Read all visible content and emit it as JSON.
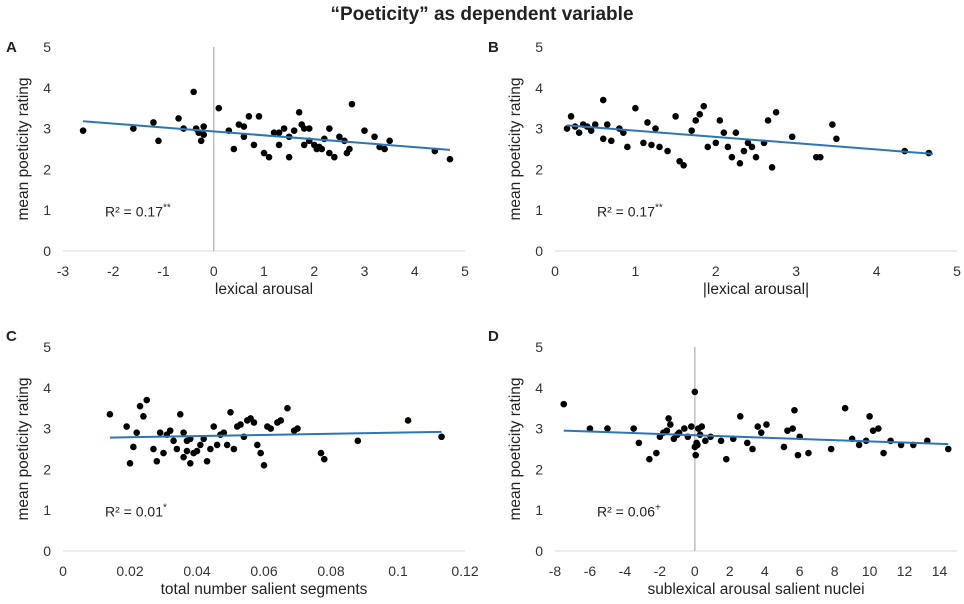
{
  "title": "“Poeticity” as dependent variable",
  "colors": {
    "trendline": "#2E75B6",
    "points": "#000000",
    "zero_line": "#BFBFBF",
    "axis": "#D9D9D9"
  },
  "chart_data": [
    {
      "panel_label": "A",
      "type": "scatter",
      "xlabel": "lexical arousal",
      "ylabel": "mean poeticity rating",
      "xlim": [
        -3,
        5
      ],
      "ylim": [
        0,
        5
      ],
      "x_ticks": [
        -3,
        -2,
        -1,
        0,
        1,
        2,
        3,
        4,
        5
      ],
      "y_ticks": [
        0,
        1,
        2,
        3,
        4,
        5
      ],
      "zero_line": true,
      "r2_text": "R² = 0.17",
      "r2_sig": "**",
      "trend": {
        "x": [
          -2.6,
          4.7
        ],
        "y": [
          3.18,
          2.48
        ]
      },
      "points": {
        "x": [
          -2.6,
          -1.6,
          -1.2,
          -1.1,
          -0.7,
          -0.6,
          -0.4,
          -0.35,
          -0.3,
          -0.25,
          -0.2,
          -0.2,
          0.1,
          0.3,
          0.4,
          0.5,
          0.6,
          0.6,
          0.7,
          0.8,
          0.9,
          1.0,
          1.1,
          1.2,
          1.3,
          1.3,
          1.4,
          1.5,
          1.5,
          1.6,
          1.7,
          1.75,
          1.8,
          1.8,
          1.9,
          1.9,
          2.0,
          2.05,
          2.1,
          2.15,
          2.2,
          2.3,
          2.3,
          2.4,
          2.5,
          2.6,
          2.65,
          2.7,
          2.75,
          3.0,
          3.2,
          3.3,
          3.4,
          3.5,
          4.4,
          4.7
        ],
        "y": [
          2.95,
          3.0,
          3.15,
          2.7,
          3.25,
          3.0,
          3.9,
          3.0,
          2.9,
          2.7,
          3.05,
          2.85,
          3.5,
          2.95,
          2.5,
          3.1,
          2.8,
          3.05,
          3.3,
          2.6,
          3.3,
          2.4,
          2.3,
          2.9,
          2.6,
          2.9,
          3.0,
          2.3,
          2.8,
          2.95,
          3.4,
          3.1,
          2.6,
          3.0,
          2.7,
          3.0,
          2.6,
          2.5,
          2.55,
          2.5,
          2.75,
          2.4,
          3.0,
          2.3,
          2.8,
          2.7,
          2.4,
          2.5,
          3.6,
          2.95,
          2.8,
          2.55,
          2.5,
          2.7,
          2.45,
          2.25
        ]
      }
    },
    {
      "panel_label": "B",
      "type": "scatter",
      "xlabel": "|lexical arousal|",
      "ylabel": "mean poeticity rating",
      "xlim": [
        0,
        5
      ],
      "ylim": [
        0,
        5
      ],
      "x_ticks": [
        0,
        1,
        2,
        3,
        4,
        5
      ],
      "y_ticks": [
        0,
        1,
        2,
        3,
        4,
        5
      ],
      "zero_line": false,
      "r2_text": "R² = 0.17",
      "r2_sig": "**",
      "trend": {
        "x": [
          0.15,
          4.7
        ],
        "y": [
          3.08,
          2.38
        ]
      },
      "points": {
        "x": [
          0.15,
          0.2,
          0.25,
          0.3,
          0.35,
          0.4,
          0.45,
          0.5,
          0.6,
          0.6,
          0.65,
          0.7,
          0.8,
          0.85,
          0.9,
          1.0,
          1.1,
          1.15,
          1.2,
          1.25,
          1.3,
          1.4,
          1.5,
          1.55,
          1.6,
          1.7,
          1.75,
          1.8,
          1.85,
          1.9,
          2.0,
          2.05,
          2.1,
          2.15,
          2.2,
          2.25,
          2.3,
          2.35,
          2.4,
          2.45,
          2.5,
          2.6,
          2.65,
          2.7,
          2.75,
          2.95,
          3.25,
          3.3,
          3.45,
          3.5,
          4.35,
          4.65
        ],
        "y": [
          3.0,
          3.3,
          3.05,
          2.9,
          3.1,
          3.05,
          2.95,
          3.1,
          3.7,
          2.75,
          3.1,
          2.7,
          3.0,
          2.9,
          2.55,
          3.5,
          2.65,
          3.15,
          2.6,
          3.0,
          2.55,
          2.45,
          3.3,
          2.2,
          2.1,
          2.95,
          3.2,
          3.35,
          3.55,
          2.55,
          2.65,
          3.2,
          2.9,
          2.55,
          2.3,
          2.9,
          2.15,
          2.45,
          2.65,
          2.55,
          2.3,
          2.65,
          3.2,
          2.05,
          3.4,
          2.8,
          2.3,
          2.3,
          3.1,
          2.75,
          2.45,
          2.4
        ]
      }
    },
    {
      "panel_label": "C",
      "type": "scatter",
      "xlabel": "total number salient segments",
      "ylabel": "mean poeticity rating",
      "xlim": [
        0,
        0.12
      ],
      "ylim": [
        0,
        5
      ],
      "x_ticks": [
        0,
        0.02,
        0.04,
        0.06,
        0.08,
        0.1,
        0.12
      ],
      "y_ticks": [
        0,
        1,
        2,
        3,
        4,
        5
      ],
      "zero_line": false,
      "r2_text": "R² = 0.01",
      "r2_sig": "*",
      "trend": {
        "x": [
          0.014,
          0.113
        ],
        "y": [
          2.78,
          2.92
        ]
      },
      "points": {
        "x": [
          0.014,
          0.019,
          0.02,
          0.021,
          0.022,
          0.023,
          0.024,
          0.025,
          0.027,
          0.028,
          0.029,
          0.03,
          0.031,
          0.032,
          0.033,
          0.034,
          0.035,
          0.036,
          0.036,
          0.037,
          0.037,
          0.038,
          0.038,
          0.039,
          0.04,
          0.041,
          0.042,
          0.043,
          0.044,
          0.045,
          0.046,
          0.047,
          0.048,
          0.049,
          0.05,
          0.051,
          0.052,
          0.053,
          0.054,
          0.055,
          0.056,
          0.057,
          0.058,
          0.059,
          0.06,
          0.061,
          0.062,
          0.064,
          0.065,
          0.067,
          0.069,
          0.07,
          0.077,
          0.078,
          0.088,
          0.103,
          0.113
        ],
        "y": [
          3.35,
          3.05,
          2.15,
          2.55,
          2.9,
          3.55,
          3.3,
          3.7,
          2.5,
          2.2,
          2.9,
          2.4,
          2.85,
          2.95,
          2.7,
          2.5,
          3.35,
          2.3,
          2.9,
          2.7,
          2.45,
          2.75,
          2.15,
          2.4,
          2.45,
          2.6,
          2.75,
          2.2,
          2.5,
          3.05,
          2.6,
          2.85,
          2.9,
          2.6,
          3.4,
          2.5,
          3.05,
          3.1,
          2.8,
          3.2,
          3.25,
          3.15,
          2.6,
          2.4,
          2.1,
          3.05,
          3.0,
          3.15,
          3.2,
          3.5,
          2.95,
          3.0,
          2.4,
          2.25,
          2.7,
          3.2,
          2.8
        ]
      }
    },
    {
      "panel_label": "D",
      "type": "scatter",
      "xlabel": "sublexical arousal salient nuclei",
      "ylabel": "mean poeticity rating",
      "xlim": [
        -8,
        15
      ],
      "ylim": [
        0,
        5
      ],
      "x_ticks": [
        -8,
        -6,
        -4,
        -2,
        0,
        2,
        4,
        6,
        8,
        10,
        12,
        14
      ],
      "y_ticks": [
        0,
        1,
        2,
        3,
        4,
        5
      ],
      "zero_line": true,
      "r2_text": "R² = 0.06",
      "r2_sig": "+",
      "trend": {
        "x": [
          -7.5,
          14.5
        ],
        "y": [
          2.95,
          2.62
        ]
      },
      "points": {
        "x": [
          -7.5,
          -6.0,
          -5.0,
          -3.5,
          -3.2,
          -2.6,
          -2.2,
          -2.0,
          -1.8,
          -1.6,
          -1.5,
          -1.4,
          -1.2,
          -1.0,
          -0.9,
          -0.6,
          -0.4,
          -0.2,
          0.0,
          0.0,
          0.05,
          0.1,
          0.15,
          0.2,
          0.3,
          0.4,
          0.6,
          0.9,
          1.5,
          1.8,
          2.2,
          2.6,
          3.0,
          3.3,
          3.6,
          3.8,
          4.1,
          5.1,
          5.3,
          5.6,
          5.7,
          5.9,
          6.0,
          6.5,
          7.8,
          8.6,
          9.0,
          9.4,
          9.8,
          10.0,
          10.2,
          10.5,
          10.8,
          11.2,
          11.8,
          12.5,
          13.3,
          14.5
        ],
        "y": [
          3.6,
          3.0,
          3.0,
          3.0,
          2.65,
          2.25,
          2.4,
          2.8,
          2.9,
          2.95,
          3.25,
          3.1,
          2.75,
          2.85,
          2.9,
          3.0,
          2.8,
          3.05,
          3.9,
          2.55,
          2.35,
          2.65,
          2.6,
          3.0,
          2.85,
          3.05,
          2.7,
          2.8,
          2.7,
          2.25,
          2.75,
          3.3,
          2.65,
          2.5,
          3.05,
          2.9,
          3.1,
          2.55,
          2.95,
          3.0,
          3.45,
          2.35,
          2.8,
          2.4,
          2.5,
          3.5,
          2.75,
          2.6,
          2.7,
          3.3,
          2.95,
          3.0,
          2.4,
          2.7,
          2.6,
          2.6,
          2.7,
          2.5
        ]
      }
    }
  ]
}
